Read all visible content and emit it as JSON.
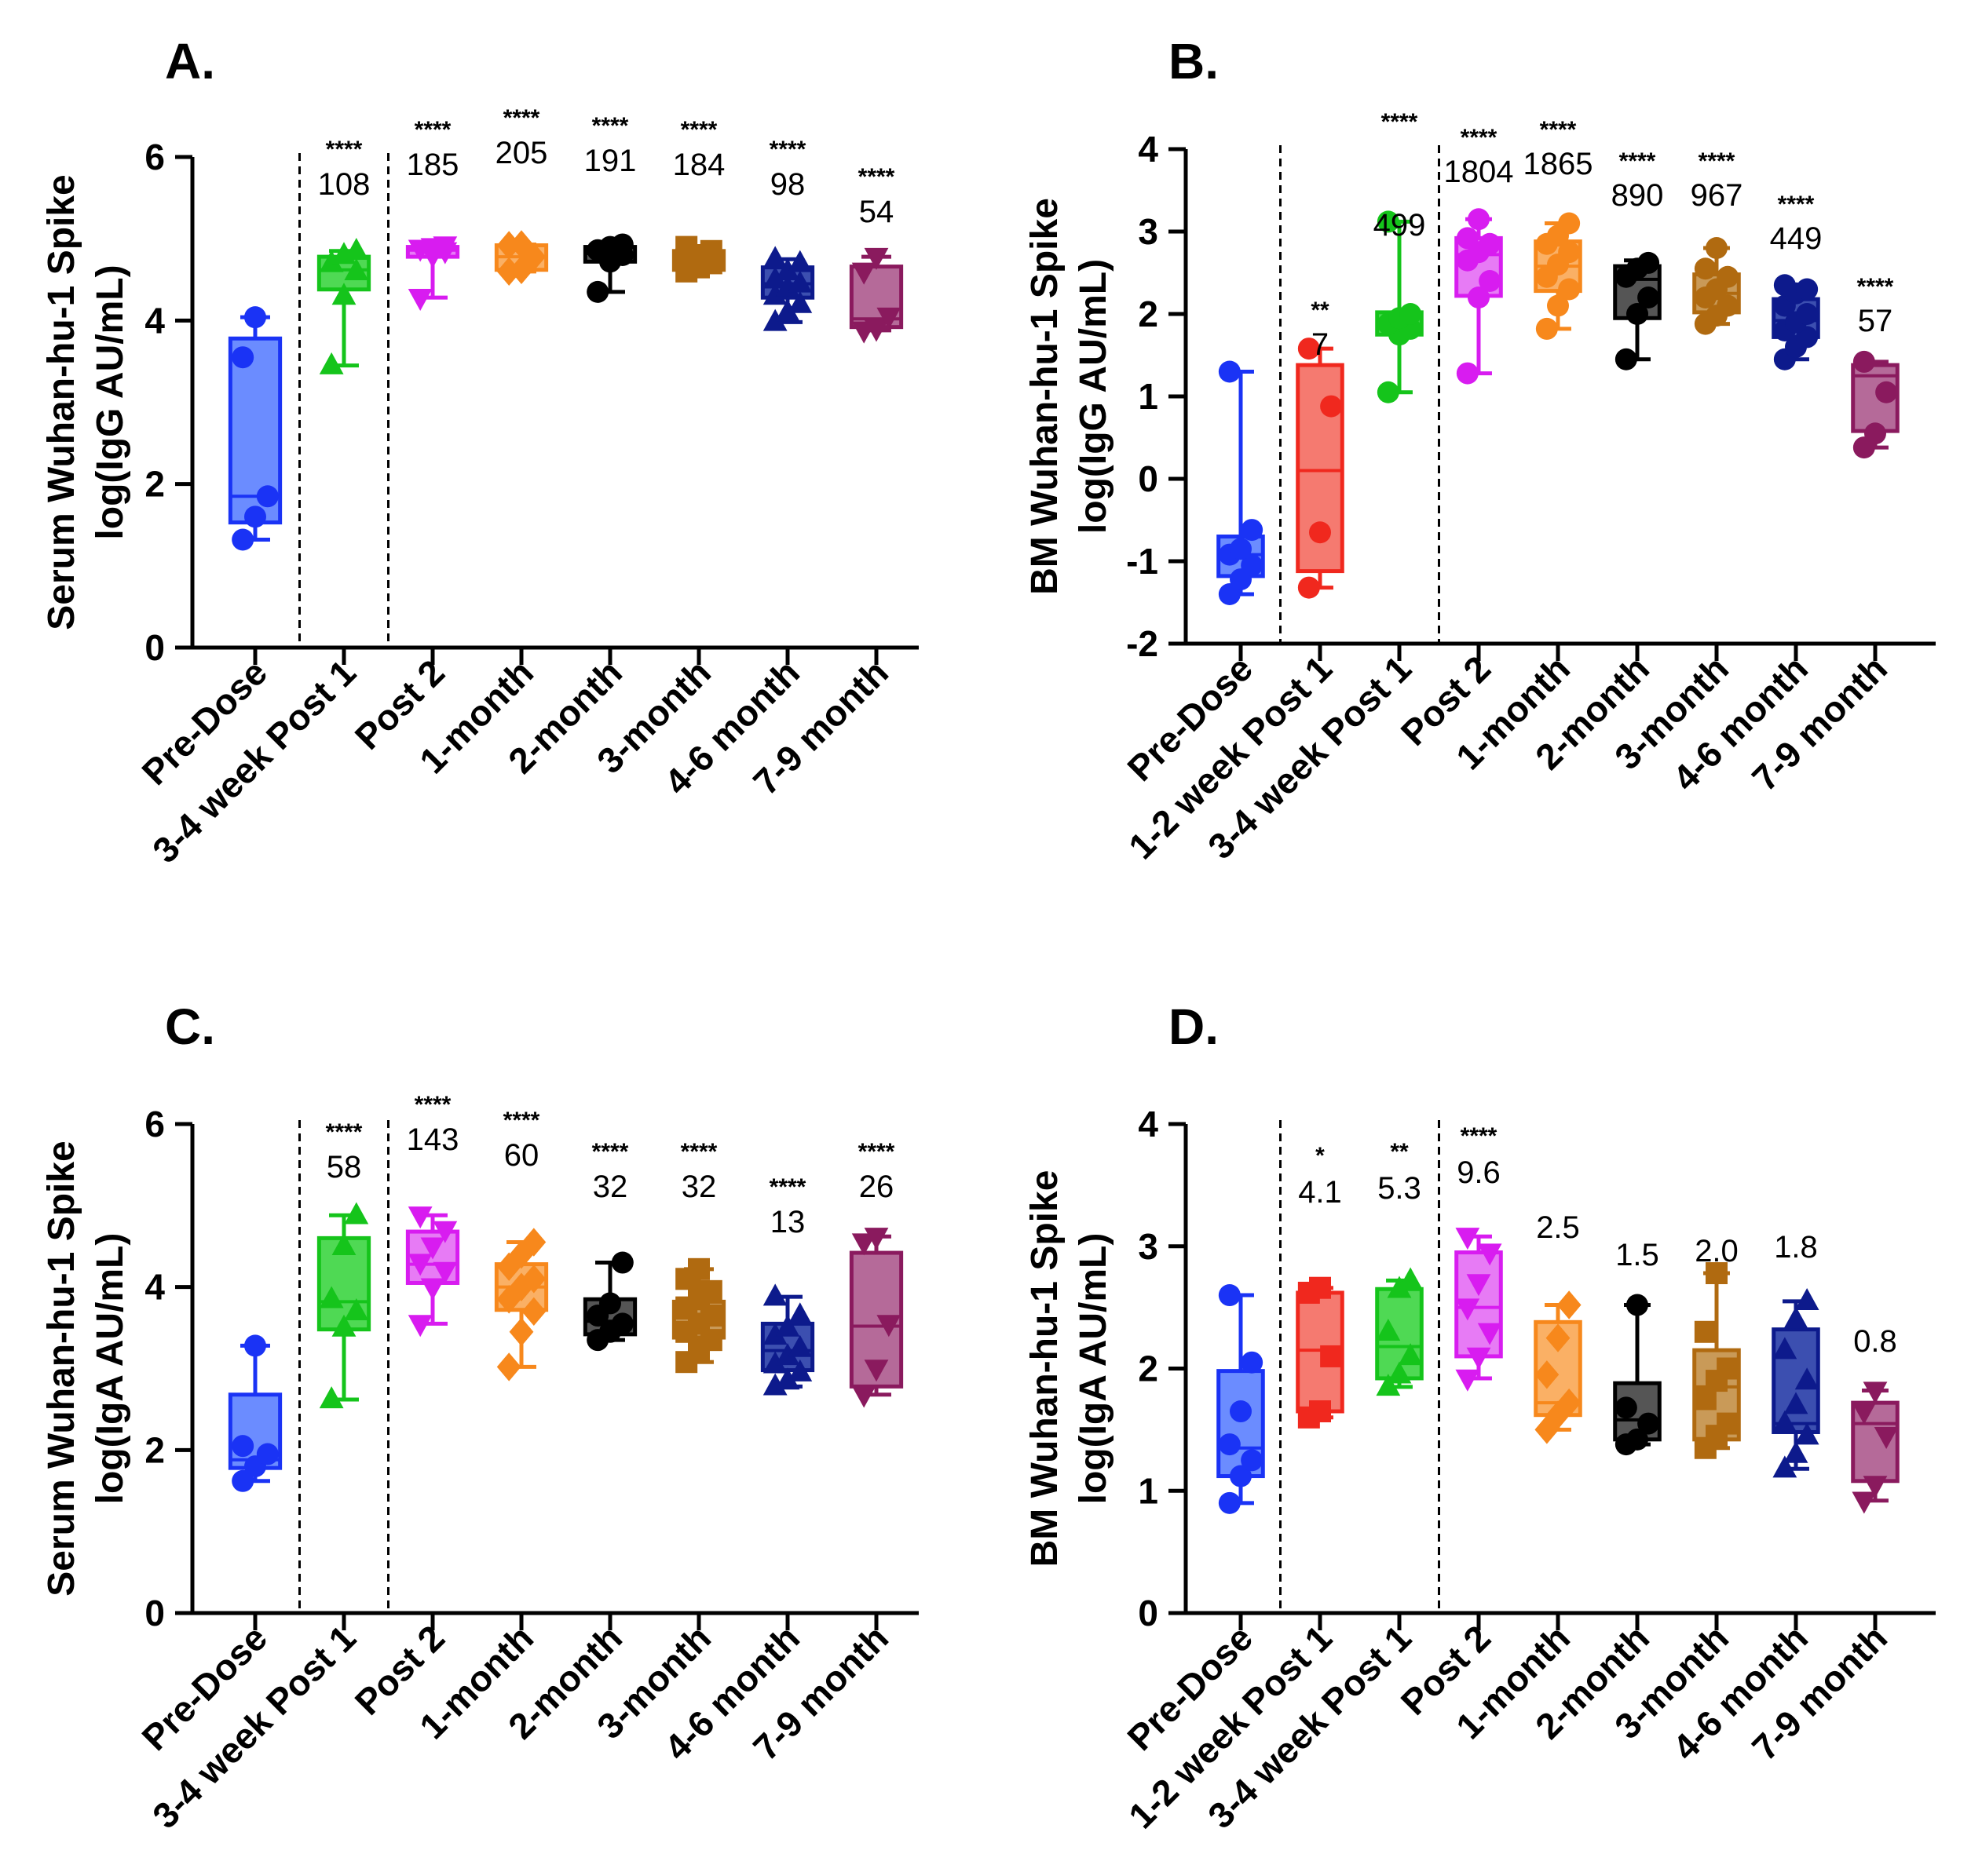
{
  "chart_data": [
    {
      "id": "A",
      "panel_label": "A.",
      "type": "box",
      "ylabel_line1": "Serum Wuhan-hu-1 Spike",
      "ylabel_line2": "log(IgG AU/mL)",
      "ylim": [
        0,
        6
      ],
      "yticks": [
        0,
        2,
        4,
        6
      ],
      "categories": [
        "Pre-Dose",
        "3-4 week Post 1",
        "Post 2",
        "1-month",
        "2-month",
        "3-month",
        "4-6 month",
        "7-9 month"
      ],
      "dividers_after": [
        0,
        1
      ],
      "boxes": [
        {
          "min": 1.32,
          "q1": 1.53,
          "median": 1.85,
          "q3": 3.78,
          "max": 4.04,
          "points": [
            1.32,
            1.6,
            1.85,
            3.55,
            4.04
          ],
          "marker": "circle",
          "color": "#1a33f5",
          "fill": "#6b8cff",
          "stars": "",
          "value": ""
        },
        {
          "min": 3.45,
          "q1": 4.38,
          "median": 4.62,
          "q3": 4.78,
          "max": 4.85,
          "points": [
            3.45,
            4.3,
            4.6,
            4.7,
            4.8,
            4.85
          ],
          "marker": "triangle",
          "color": "#15c41b",
          "fill": "#4fd954",
          "stars": "****",
          "value": "108"
        },
        {
          "min": 4.28,
          "q1": 4.78,
          "median": 4.86,
          "q3": 4.9,
          "max": 4.92,
          "points": [
            4.28,
            4.8,
            4.85,
            4.88,
            4.9,
            4.92
          ],
          "marker": "tri-down",
          "color": "#d81cf0",
          "fill": "#e77bf5",
          "stars": "****",
          "value": "185"
        },
        {
          "min": 4.6,
          "q1": 4.62,
          "median": 4.78,
          "q3": 4.92,
          "max": 4.93,
          "points": [
            4.6,
            4.62,
            4.78,
            4.92,
            4.93
          ],
          "marker": "diamond",
          "color": "#f7881c",
          "fill": "#fab065",
          "stars": "****",
          "value": "205"
        },
        {
          "min": 4.35,
          "q1": 4.72,
          "median": 4.82,
          "q3": 4.9,
          "max": 4.93,
          "points": [
            4.35,
            4.72,
            4.8,
            4.86,
            4.9,
            4.93
          ],
          "marker": "circle",
          "color": "#000000",
          "fill": "#555555",
          "stars": "****",
          "value": "191"
        },
        {
          "min": 4.6,
          "q1": 4.62,
          "median": 4.72,
          "q3": 4.85,
          "max": 4.9,
          "points": [
            4.6,
            4.65,
            4.7,
            4.75,
            4.8,
            4.85,
            4.9
          ],
          "marker": "square",
          "color": "#b06a10",
          "fill": "#c99a58",
          "stars": "****",
          "value": "184"
        },
        {
          "min": 3.98,
          "q1": 4.28,
          "median": 4.45,
          "q3": 4.65,
          "max": 4.75,
          "points": [
            3.98,
            4.1,
            4.2,
            4.3,
            4.4,
            4.45,
            4.5,
            4.6,
            4.7,
            4.75
          ],
          "marker": "triangle",
          "color": "#0d1a8c",
          "fill": "#3c4fb0",
          "stars": "****",
          "value": "98"
        },
        {
          "min": 3.88,
          "q1": 3.92,
          "median": 4.02,
          "q3": 4.66,
          "max": 4.78,
          "points": [
            3.88,
            3.9,
            4.05,
            4.6,
            4.78
          ],
          "marker": "tri-down",
          "color": "#8a1a5e",
          "fill": "#b56a99",
          "stars": "****",
          "value": "54"
        }
      ]
    },
    {
      "id": "B",
      "panel_label": "B.",
      "type": "box",
      "ylabel_line1": "BM Wuhan-hu-1 Spike",
      "ylabel_line2": "log(IgG AU/mL)",
      "ylim": [
        -2,
        4
      ],
      "yticks": [
        -2,
        -1,
        0,
        1,
        2,
        3,
        4
      ],
      "categories": [
        "Pre-Dose",
        "1-2 week Post 1",
        "3-4 week Post 1",
        "Post 2",
        "1-month",
        "2-month",
        "3-month",
        "4-6 month",
        "7-9 month"
      ],
      "dividers_after": [
        0,
        2
      ],
      "boxes": [
        {
          "min": -1.4,
          "q1": -1.18,
          "median": -0.92,
          "q3": -0.7,
          "max": 1.3,
          "points": [
            -1.4,
            -1.22,
            -1.05,
            -0.92,
            -0.85,
            -0.62,
            1.3
          ],
          "marker": "circle",
          "color": "#1a33f5",
          "fill": "#6b8cff",
          "stars": "",
          "value": ""
        },
        {
          "min": -1.32,
          "q1": -1.12,
          "median": 0.1,
          "q3": 1.38,
          "max": 1.58,
          "points": [
            -1.32,
            -0.65,
            0.88,
            1.58
          ],
          "marker": "circle",
          "color": "#f0281e",
          "fill": "#f57a70",
          "stars": "**",
          "value": "7"
        },
        {
          "min": 1.05,
          "q1": 1.75,
          "median": 1.85,
          "q3": 2.02,
          "max": 3.12,
          "points": [
            1.05,
            1.75,
            1.82,
            1.88,
            1.95,
            2.0,
            3.12
          ],
          "marker": "circle",
          "color": "#15c41b",
          "fill": "#4fd954",
          "stars": "****",
          "value": "499"
        },
        {
          "min": 1.28,
          "q1": 2.22,
          "median": 2.72,
          "q3": 2.92,
          "max": 3.15,
          "points": [
            1.28,
            2.2,
            2.4,
            2.65,
            2.75,
            2.85,
            2.92,
            3.15
          ],
          "marker": "circle",
          "color": "#d81cf0",
          "fill": "#e77bf5",
          "stars": "****",
          "value": "1804"
        },
        {
          "min": 1.82,
          "q1": 2.28,
          "median": 2.58,
          "q3": 2.88,
          "max": 3.1,
          "points": [
            1.82,
            2.1,
            2.3,
            2.45,
            2.6,
            2.75,
            2.85,
            2.95,
            3.1
          ],
          "marker": "circle",
          "color": "#f7881c",
          "fill": "#fab065",
          "stars": "****",
          "value": "1865"
        },
        {
          "min": 1.45,
          "q1": 1.95,
          "median": 2.42,
          "q3": 2.58,
          "max": 2.65,
          "points": [
            1.45,
            2.0,
            2.2,
            2.45,
            2.55,
            2.62
          ],
          "marker": "circle",
          "color": "#000000",
          "fill": "#555555",
          "stars": "****",
          "value": "890"
        },
        {
          "min": 1.88,
          "q1": 2.02,
          "median": 2.25,
          "q3": 2.48,
          "max": 2.8,
          "points": [
            1.88,
            1.98,
            2.1,
            2.2,
            2.3,
            2.45,
            2.55,
            2.8
          ],
          "marker": "circle",
          "color": "#b06a10",
          "fill": "#c99a58",
          "stars": "****",
          "value": "967"
        },
        {
          "min": 1.45,
          "q1": 1.72,
          "median": 1.92,
          "q3": 2.18,
          "max": 2.35,
          "points": [
            1.45,
            1.6,
            1.72,
            1.8,
            1.9,
            2.0,
            2.1,
            2.25,
            2.3,
            2.35
          ],
          "marker": "circle",
          "color": "#0d1a8c",
          "fill": "#3c4fb0",
          "stars": "****",
          "value": "449"
        },
        {
          "min": 0.38,
          "q1": 0.58,
          "median": 1.25,
          "q3": 1.38,
          "max": 1.42,
          "points": [
            0.38,
            0.55,
            1.05,
            1.42
          ],
          "marker": "circle",
          "color": "#8a1a5e",
          "fill": "#b56a99",
          "stars": "****",
          "value": "57"
        }
      ]
    },
    {
      "id": "C",
      "panel_label": "C.",
      "type": "box",
      "ylabel_line1": "Serum Wuhan-hu-1 Spike",
      "ylabel_line2": "log(IgA AU/mL)",
      "ylim": [
        0,
        6
      ],
      "yticks": [
        0,
        2,
        4,
        6
      ],
      "categories": [
        "Pre-Dose",
        "3-4 week Post 1",
        "Post 2",
        "1-month",
        "2-month",
        "3-month",
        "4-6 month",
        "7-9 month"
      ],
      "dividers_after": [
        0,
        1
      ],
      "boxes": [
        {
          "min": 1.62,
          "q1": 1.78,
          "median": 1.88,
          "q3": 2.68,
          "max": 3.28,
          "points": [
            1.62,
            1.8,
            1.95,
            2.05,
            3.28
          ],
          "marker": "circle",
          "color": "#1a33f5",
          "fill": "#6b8cff",
          "stars": "",
          "value": ""
        },
        {
          "min": 2.62,
          "q1": 3.48,
          "median": 3.82,
          "q3": 4.6,
          "max": 4.88,
          "points": [
            2.62,
            3.5,
            3.7,
            3.85,
            4.5,
            4.88
          ],
          "marker": "triangle",
          "color": "#15c41b",
          "fill": "#4fd954",
          "stars": "****",
          "value": "58"
        },
        {
          "min": 3.55,
          "q1": 4.05,
          "median": 4.28,
          "q3": 4.68,
          "max": 4.88,
          "points": [
            3.55,
            4.0,
            4.2,
            4.3,
            4.5,
            4.7,
            4.88
          ],
          "marker": "tri-down",
          "color": "#d81cf0",
          "fill": "#e77bf5",
          "stars": "****",
          "value": "143"
        },
        {
          "min": 3.02,
          "q1": 3.72,
          "median": 4.0,
          "q3": 4.28,
          "max": 4.55,
          "points": [
            3.02,
            3.45,
            3.7,
            3.85,
            4.0,
            4.1,
            4.25,
            4.4,
            4.55
          ],
          "marker": "diamond",
          "color": "#f7881c",
          "fill": "#fab065",
          "stars": "****",
          "value": "60"
        },
        {
          "min": 3.35,
          "q1": 3.42,
          "median": 3.58,
          "q3": 3.85,
          "max": 4.3,
          "points": [
            3.35,
            3.45,
            3.55,
            3.65,
            3.8,
            4.3
          ],
          "marker": "circle",
          "color": "#000000",
          "fill": "#555555",
          "stars": "****",
          "value": "32"
        },
        {
          "min": 3.08,
          "q1": 3.38,
          "median": 3.62,
          "q3": 3.82,
          "max": 4.22,
          "points": [
            3.08,
            3.2,
            3.35,
            3.45,
            3.55,
            3.65,
            3.75,
            3.85,
            3.95,
            4.1,
            4.22
          ],
          "marker": "square",
          "color": "#b06a10",
          "fill": "#c99a58",
          "stars": "****",
          "value": "32"
        },
        {
          "min": 2.78,
          "q1": 2.98,
          "median": 3.22,
          "q3": 3.55,
          "max": 3.88,
          "points": [
            2.78,
            2.85,
            2.95,
            3.05,
            3.15,
            3.25,
            3.4,
            3.5,
            3.65,
            3.88
          ],
          "marker": "triangle",
          "color": "#0d1a8c",
          "fill": "#3c4fb0",
          "stars": "****",
          "value": "13"
        },
        {
          "min": 2.68,
          "q1": 2.78,
          "median": 3.52,
          "q3": 4.42,
          "max": 4.62,
          "points": [
            2.68,
            3.0,
            3.55,
            4.55,
            4.62
          ],
          "marker": "tri-down",
          "color": "#8a1a5e",
          "fill": "#b56a99",
          "stars": "****",
          "value": "26"
        }
      ]
    },
    {
      "id": "D",
      "panel_label": "D.",
      "type": "box",
      "ylabel_line1": "BM Wuhan-hu-1 Spike",
      "ylabel_line2": "log(IgA AU/mL)",
      "ylim": [
        0,
        4
      ],
      "yticks": [
        0,
        1,
        2,
        3,
        4
      ],
      "categories": [
        "Pre-Dose",
        "1-2 week Post 1",
        "3-4 week Post 1",
        "Post 2",
        "1-month",
        "2-month",
        "3-month",
        "4-6 month",
        "7-9 month"
      ],
      "dividers_after": [
        0,
        2
      ],
      "boxes": [
        {
          "min": 0.9,
          "q1": 1.12,
          "median": 1.35,
          "q3": 1.98,
          "max": 2.6,
          "points": [
            0.9,
            1.12,
            1.25,
            1.38,
            1.65,
            2.05,
            2.6
          ],
          "marker": "circle",
          "color": "#1a33f5",
          "fill": "#6b8cff",
          "stars": "",
          "value": ""
        },
        {
          "min": 1.6,
          "q1": 1.65,
          "median": 2.15,
          "q3": 2.62,
          "max": 2.66,
          "points": [
            1.6,
            1.65,
            2.1,
            2.62,
            2.66
          ],
          "marker": "square",
          "color": "#f0281e",
          "fill": "#f57a70",
          "stars": "*",
          "value": "4.1"
        },
        {
          "min": 1.85,
          "q1": 1.92,
          "median": 2.18,
          "q3": 2.65,
          "max": 2.72,
          "points": [
            1.85,
            1.95,
            2.1,
            2.3,
            2.65,
            2.72
          ],
          "marker": "triangle",
          "color": "#15c41b",
          "fill": "#4fd954",
          "stars": "**",
          "value": "5.3"
        },
        {
          "min": 1.92,
          "q1": 2.1,
          "median": 2.5,
          "q3": 2.95,
          "max": 3.08,
          "points": [
            1.92,
            2.1,
            2.3,
            2.5,
            2.7,
            2.95,
            3.08
          ],
          "marker": "tri-down",
          "color": "#d81cf0",
          "fill": "#e77bf5",
          "stars": "****",
          "value": "9.6"
        },
        {
          "min": 1.5,
          "q1": 1.62,
          "median": 1.72,
          "q3": 2.38,
          "max": 2.52,
          "points": [
            1.5,
            1.62,
            1.72,
            1.95,
            2.25,
            2.52
          ],
          "marker": "diamond",
          "color": "#f7881c",
          "fill": "#fab065",
          "stars": "",
          "value": "2.5"
        },
        {
          "min": 1.38,
          "q1": 1.42,
          "median": 1.58,
          "q3": 1.88,
          "max": 2.52,
          "points": [
            1.38,
            1.42,
            1.55,
            1.68,
            2.52
          ],
          "marker": "circle",
          "color": "#000000",
          "fill": "#555555",
          "stars": "",
          "value": "1.5"
        },
        {
          "min": 1.35,
          "q1": 1.42,
          "median": 1.85,
          "q3": 2.15,
          "max": 2.78,
          "points": [
            1.35,
            1.45,
            1.55,
            1.75,
            1.9,
            2.0,
            2.3,
            2.78
          ],
          "marker": "square",
          "color": "#b06a10",
          "fill": "#c99a58",
          "stars": "",
          "value": "2.0"
        },
        {
          "min": 1.18,
          "q1": 1.48,
          "median": 1.55,
          "q3": 2.32,
          "max": 2.55,
          "points": [
            1.18,
            1.3,
            1.45,
            1.55,
            1.7,
            1.9,
            2.15,
            2.4,
            2.55
          ],
          "marker": "triangle",
          "color": "#0d1a8c",
          "fill": "#3c4fb0",
          "stars": "",
          "value": "1.8"
        },
        {
          "min": 0.92,
          "q1": 1.08,
          "median": 1.55,
          "q3": 1.72,
          "max": 1.82,
          "points": [
            0.92,
            1.05,
            1.45,
            1.65,
            1.82
          ],
          "marker": "tri-down",
          "color": "#8a1a5e",
          "fill": "#b56a99",
          "stars": "",
          "value": "0.8"
        }
      ]
    }
  ]
}
